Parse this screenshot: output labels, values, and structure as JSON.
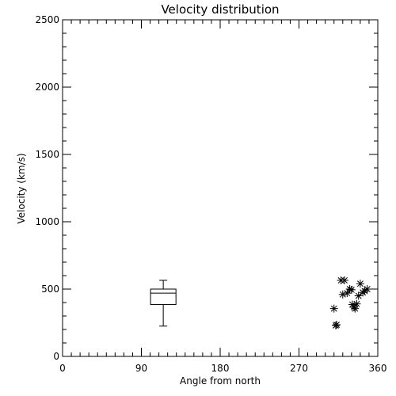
{
  "chart_data": {
    "type": "scatter",
    "title": "Velocity distribution",
    "xlabel": "Angle from north",
    "ylabel": "Velocity (km/s)",
    "xlim": [
      0,
      360
    ],
    "ylim": [
      0,
      2500
    ],
    "x_ticks": [
      0,
      90,
      180,
      270,
      360
    ],
    "y_ticks": [
      0,
      500,
      1000,
      1500,
      2000,
      2500
    ],
    "x_minor_step": 10,
    "y_minor_step": 100,
    "grid": false,
    "marker": "asterisk",
    "points": [
      {
        "x": 310,
        "y": 355
      },
      {
        "x": 312,
        "y": 230
      },
      {
        "x": 313,
        "y": 235
      },
      {
        "x": 318,
        "y": 565
      },
      {
        "x": 320,
        "y": 460
      },
      {
        "x": 322,
        "y": 565
      },
      {
        "x": 325,
        "y": 470
      },
      {
        "x": 328,
        "y": 500
      },
      {
        "x": 330,
        "y": 495
      },
      {
        "x": 331,
        "y": 385
      },
      {
        "x": 333,
        "y": 365
      },
      {
        "x": 334,
        "y": 355
      },
      {
        "x": 336,
        "y": 390
      },
      {
        "x": 338,
        "y": 450
      },
      {
        "x": 340,
        "y": 540
      },
      {
        "x": 343,
        "y": 475
      },
      {
        "x": 345,
        "y": 485
      },
      {
        "x": 348,
        "y": 500
      }
    ],
    "boxplot": {
      "x": 115,
      "width": 29,
      "whisker_low": 225,
      "q1": 385,
      "median": 470,
      "q3": 500,
      "whisker_high": 565
    }
  }
}
